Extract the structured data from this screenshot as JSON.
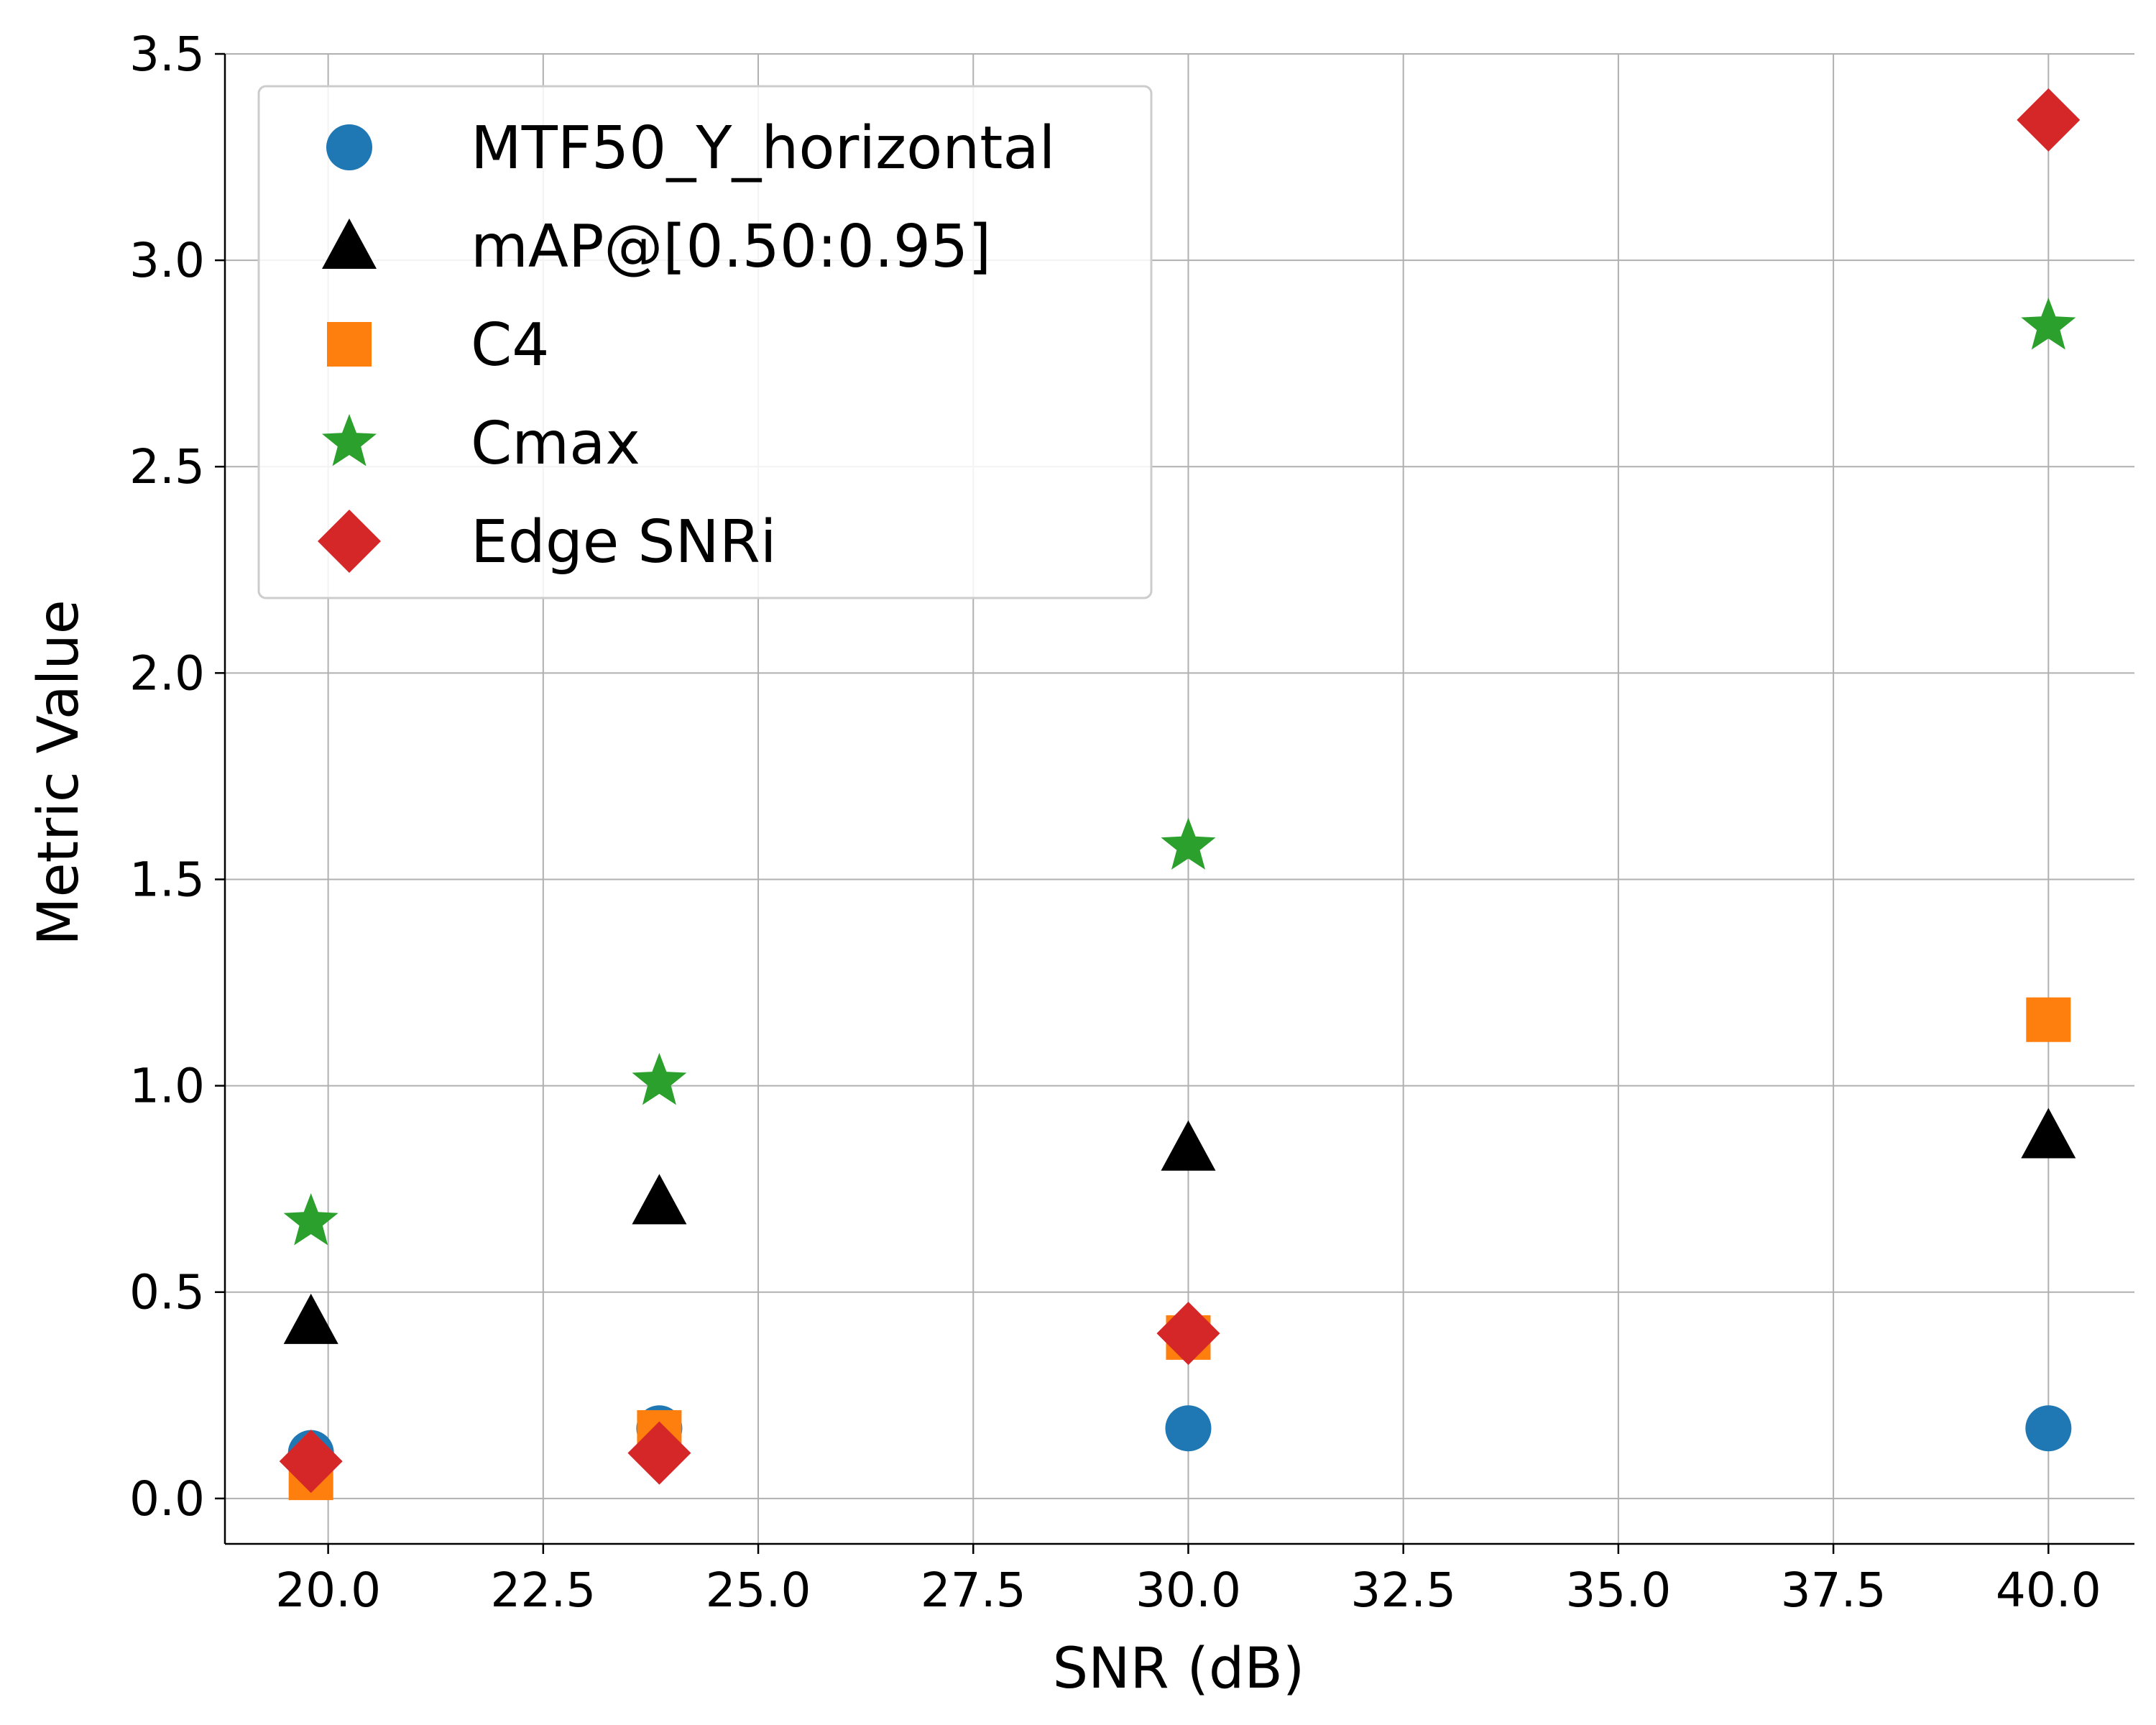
{
  "chart_data": {
    "type": "scatter",
    "title": "",
    "xlabel": "SNR (dB)",
    "ylabel": "Metric Value",
    "xlim": [
      18.8,
      41.0
    ],
    "ylim": [
      -0.11,
      3.5
    ],
    "xticks": [
      "20.0",
      "22.5",
      "25.0",
      "27.5",
      "30.0",
      "32.5",
      "35.0",
      "37.5",
      "40.0"
    ],
    "yticks": [
      "0.0",
      "0.5",
      "1.0",
      "1.5",
      "2.0",
      "2.5",
      "3.0",
      "3.5"
    ],
    "grid": true,
    "legend_position": "upper-left",
    "series": [
      {
        "name": "MTF50_Y_horizontal",
        "marker": "circle",
        "color": "#1f77b4",
        "points": [
          [
            19.8,
            0.11
          ],
          [
            23.85,
            0.17
          ],
          [
            30.0,
            0.17
          ],
          [
            40.0,
            0.17
          ]
        ]
      },
      {
        "name": "mAP@[0.50:0.95]",
        "marker": "triangle",
        "color": "#000000",
        "points": [
          [
            19.8,
            0.43
          ],
          [
            23.85,
            0.72
          ],
          [
            30.0,
            0.85
          ],
          [
            40.0,
            0.88
          ]
        ]
      },
      {
        "name": "C4",
        "marker": "square",
        "color": "#ff7f0e",
        "points": [
          [
            19.8,
            0.05
          ],
          [
            23.85,
            0.16
          ],
          [
            30.0,
            0.39
          ],
          [
            40.0,
            1.16
          ]
        ]
      },
      {
        "name": "Cmax",
        "marker": "star",
        "color": "#2ca02c",
        "points": [
          [
            19.8,
            0.67
          ],
          [
            23.85,
            1.01
          ],
          [
            30.0,
            1.58
          ],
          [
            40.0,
            2.84
          ]
        ]
      },
      {
        "name": "Edge SNRi",
        "marker": "diamond",
        "color": "#d62728",
        "points": [
          [
            19.8,
            0.09
          ],
          [
            23.85,
            0.11
          ],
          [
            30.0,
            0.4
          ],
          [
            40.0,
            3.34
          ]
        ]
      }
    ]
  }
}
